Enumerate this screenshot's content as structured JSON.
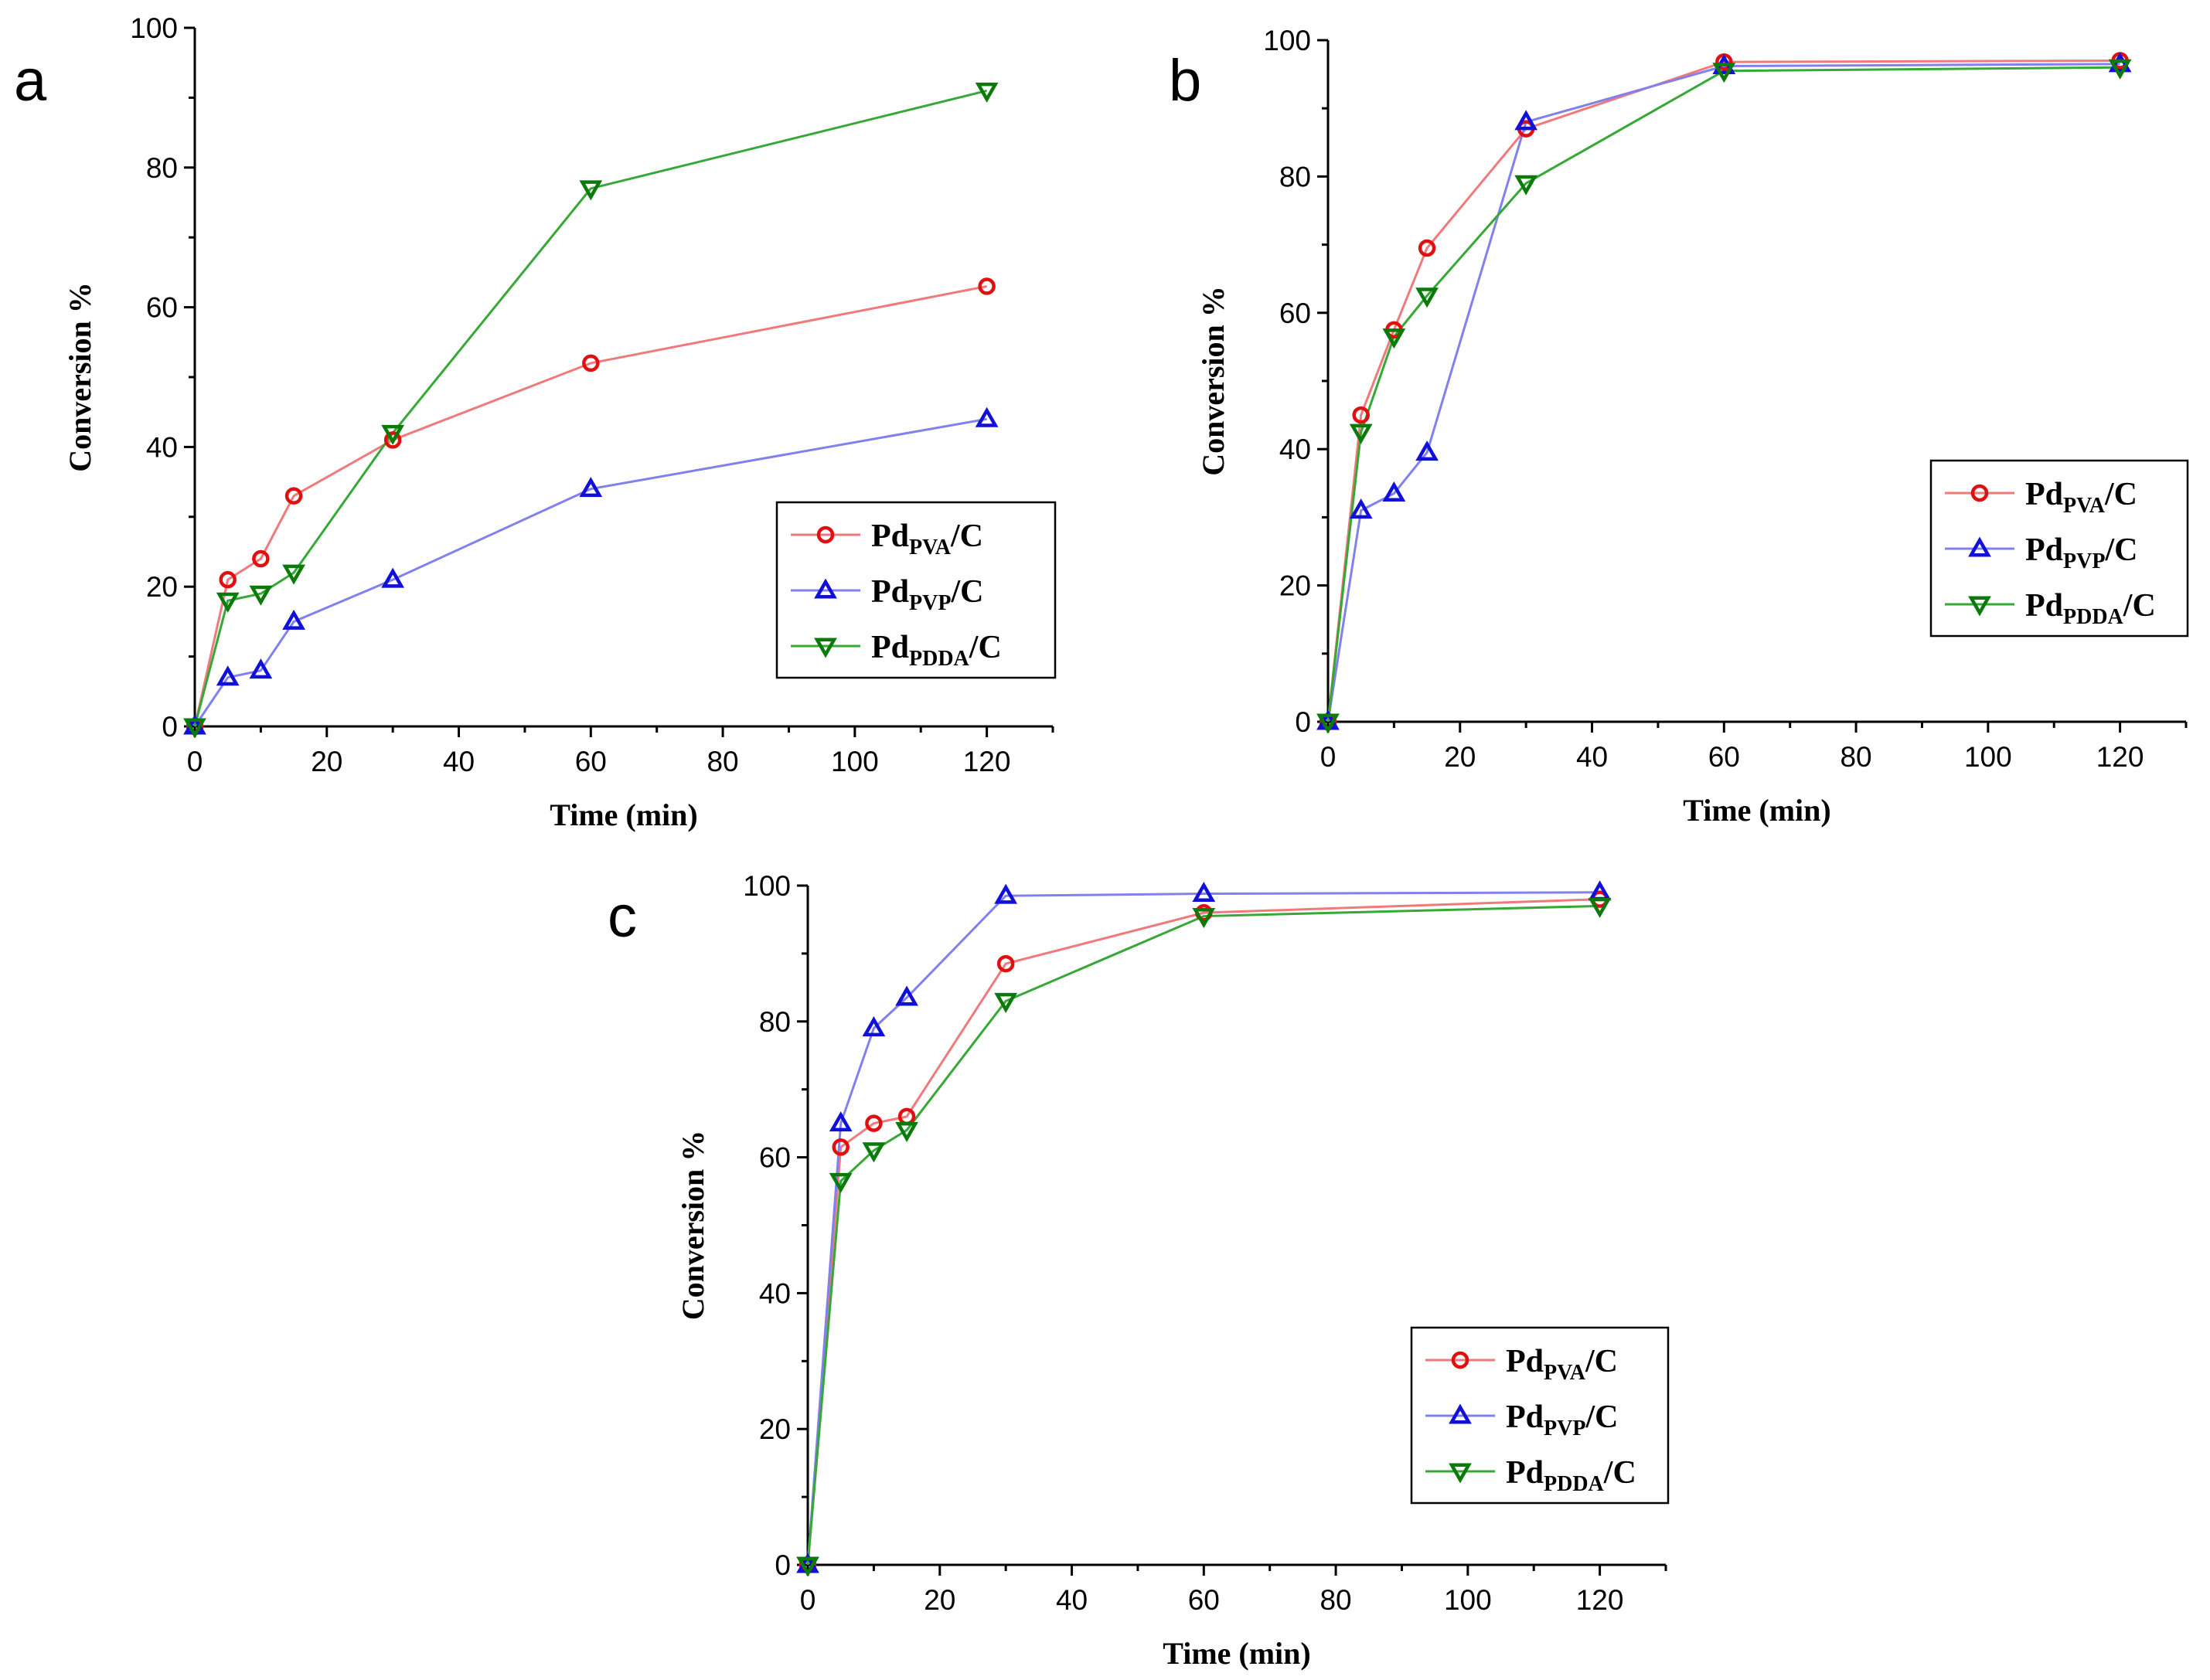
{
  "figure": {
    "series_style": [
      {
        "name": "PVA",
        "line_color": "#f07a7a",
        "marker_color": "#e01010",
        "marker": "circle"
      },
      {
        "name": "PVP",
        "line_color": "#8080ee",
        "marker_color": "#1010d8",
        "marker": "triangle-up"
      },
      {
        "name": "PDDA",
        "line_color": "#36a836",
        "marker_color": "#0a7a0a",
        "marker": "triangle-down"
      }
    ]
  },
  "chart_data": [
    {
      "panel": "a",
      "type": "line",
      "xlabel": "Time (min)",
      "ylabel": "Conversion %",
      "xlim": [
        0,
        130
      ],
      "ylim": [
        0,
        100
      ],
      "xticks": [
        "0",
        "20",
        "40",
        "60",
        "80",
        "100",
        "120"
      ],
      "yticks": [
        "0",
        "20",
        "40",
        "60",
        "80",
        "100"
      ],
      "legend_position": "center-right",
      "x": [
        0,
        5,
        10,
        15,
        30,
        60,
        120
      ],
      "series": [
        {
          "name": "PVA",
          "label_main": "Pd",
          "label_sub": "PVA",
          "label_tail": "/C",
          "values": [
            0,
            21,
            24,
            33,
            41,
            52,
            63
          ]
        },
        {
          "name": "PVP",
          "label_main": "Pd",
          "label_sub": "PVP",
          "label_tail": "/C",
          "values": [
            0,
            7,
            8,
            15,
            21,
            34,
            44
          ]
        },
        {
          "name": "PDDA",
          "label_main": "Pd",
          "label_sub": "PDDA",
          "label_tail": "/C",
          "values": [
            0,
            18,
            19,
            22,
            42,
            77,
            91
          ]
        }
      ]
    },
    {
      "panel": "b",
      "type": "line",
      "xlabel": "Time (min)",
      "ylabel": "Conversion %",
      "xlim": [
        0,
        130
      ],
      "ylim": [
        0,
        100
      ],
      "xticks": [
        "0",
        "20",
        "40",
        "60",
        "80",
        "100",
        "120"
      ],
      "yticks": [
        "0",
        "20",
        "40",
        "60",
        "80",
        "100"
      ],
      "legend_position": "center-right",
      "x": [
        0,
        5,
        10,
        15,
        30,
        60,
        120
      ],
      "series": [
        {
          "name": "PVA",
          "label_main": "Pd",
          "label_sub": "PVA",
          "label_tail": "/C",
          "values": [
            0,
            45,
            57.5,
            69.5,
            87,
            96.8,
            97
          ]
        },
        {
          "name": "PVP",
          "label_main": "Pd",
          "label_sub": "PVP",
          "label_tail": "/C",
          "values": [
            0,
            31,
            33.5,
            39.5,
            88,
            96.2,
            96.5
          ]
        },
        {
          "name": "PDDA",
          "label_main": "Pd",
          "label_sub": "PDDA",
          "label_tail": "/C",
          "values": [
            0,
            42.5,
            56.5,
            62.5,
            79,
            95.5,
            96
          ]
        }
      ]
    },
    {
      "panel": "c",
      "type": "line",
      "xlabel": "Time (min)",
      "ylabel": "Conversion %",
      "xlim": [
        0,
        130
      ],
      "ylim": [
        0,
        100
      ],
      "xticks": [
        "0",
        "20",
        "40",
        "60",
        "80",
        "100",
        "120"
      ],
      "yticks": [
        "0",
        "20",
        "40",
        "60",
        "80",
        "100"
      ],
      "legend_position": "lower-right",
      "x": [
        0,
        5,
        10,
        15,
        30,
        60,
        120
      ],
      "series": [
        {
          "name": "PVA",
          "label_main": "Pd",
          "label_sub": "PVA",
          "label_tail": "/C",
          "values": [
            0,
            61.5,
            65,
            66,
            88.5,
            96,
            98
          ]
        },
        {
          "name": "PVP",
          "label_main": "Pd",
          "label_sub": "PVP",
          "label_tail": "/C",
          "values": [
            0,
            65,
            79,
            83.5,
            98.5,
            98.8,
            99
          ]
        },
        {
          "name": "PDDA",
          "label_main": "Pd",
          "label_sub": "PDDA",
          "label_tail": "/C",
          "values": [
            0,
            56.5,
            61,
            64,
            83,
            95.5,
            97
          ]
        }
      ]
    }
  ]
}
